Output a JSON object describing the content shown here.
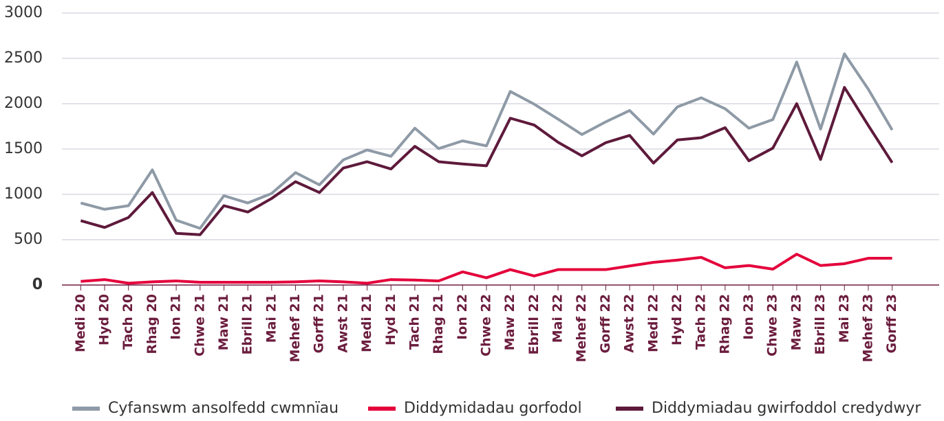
{
  "chart_data": {
    "type": "line",
    "categories": [
      "Medi 20",
      "Hyd 20",
      "Tach 20",
      "Rhag 20",
      "Ion 21",
      "Chwe 21",
      "Maw 21",
      "Ebrill 21",
      "Mai 21",
      "Mehef 21",
      "Gorff 21",
      "Awst 21",
      "Medi 21",
      "Hyd 21",
      "Tach 21",
      "Rhag 21",
      "Ion 22",
      "Chwe 22",
      "Maw 22",
      "Ebrill 22",
      "Mai 22",
      "Mehef 22",
      "Gorff 22",
      "Awst 22",
      "Medi 22",
      "Hyd 22",
      "Tach 22",
      "Rhag 22",
      "Ion 23",
      "Chwe 23",
      "Maw 23",
      "Ebrill 23",
      "Mai 23",
      "Mehef 23",
      "Gorff 23"
    ],
    "series": [
      {
        "name": "Cyfanswm ansolfedd cwmnïau",
        "color": "#8e9aa6",
        "values": [
          905,
          835,
          875,
          1270,
          715,
          625,
          985,
          905,
          1010,
          1240,
          1105,
          1380,
          1490,
          1420,
          1730,
          1505,
          1590,
          1535,
          2135,
          1995,
          1830,
          1660,
          1800,
          1925,
          1665,
          1965,
          2065,
          1945,
          1730,
          1825,
          2460,
          1720,
          2550,
          2160,
          1710
        ]
      },
      {
        "name": "Diddymidadau gorfodol",
        "color": "#e4003b",
        "values": [
          40,
          60,
          20,
          35,
          45,
          30,
          30,
          30,
          30,
          35,
          45,
          35,
          20,
          60,
          55,
          45,
          145,
          80,
          170,
          100,
          170,
          170,
          170,
          210,
          250,
          275,
          305,
          190,
          215,
          175,
          340,
          215,
          235,
          295,
          295
        ]
      },
      {
        "name": "Diddymiadau gwirfoddol credydwyr",
        "color": "#5e1a3b",
        "values": [
          710,
          635,
          745,
          1020,
          570,
          555,
          875,
          805,
          955,
          1140,
          1020,
          1290,
          1360,
          1280,
          1530,
          1360,
          1335,
          1315,
          1840,
          1765,
          1575,
          1425,
          1570,
          1650,
          1345,
          1600,
          1625,
          1735,
          1370,
          1510,
          2000,
          1385,
          2180,
          1760,
          1350
        ]
      }
    ],
    "ylim": [
      0,
      3000
    ],
    "yticks": [
      0,
      500,
      1000,
      1500,
      2000,
      2500,
      3000
    ],
    "grid": true,
    "legend": "bottom"
  }
}
